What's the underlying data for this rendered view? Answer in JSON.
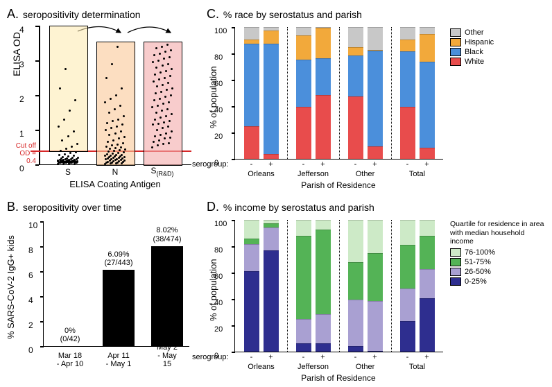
{
  "panelA": {
    "title_letter": "A.",
    "title_text": "seropositivity determination",
    "ylabel": "ELISA OD",
    "xlabel": "ELISA Coating Antigen",
    "ylim": [
      0,
      4
    ],
    "yticks": [
      0,
      1,
      2,
      3,
      4
    ],
    "cutoff": 0.4,
    "cutoff_label_line1": "Cut off",
    "cutoff_label_line2": "OD = 0.4",
    "categories": [
      "S",
      "N",
      "S(R&D)"
    ],
    "category_sub": [
      "",
      "",
      "(R&D)"
    ],
    "box_colors": [
      "#fdebb4",
      "#fac898",
      "#f4aaaa"
    ],
    "box_tops": [
      4,
      3.55,
      3.55
    ],
    "box_bottoms": [
      0.4,
      0,
      0
    ],
    "dots": {
      "S": [
        0.02,
        0.03,
        0.04,
        0.04,
        0.05,
        0.05,
        0.05,
        0.06,
        0.06,
        0.06,
        0.06,
        0.07,
        0.07,
        0.07,
        0.08,
        0.08,
        0.08,
        0.09,
        0.09,
        0.09,
        0.1,
        0.1,
        0.1,
        0.11,
        0.11,
        0.12,
        0.12,
        0.13,
        0.13,
        0.14,
        0.14,
        0.15,
        0.15,
        0.16,
        0.17,
        0.18,
        0.19,
        0.2,
        0.22,
        0.24,
        0.26,
        0.28,
        0.3,
        0.33,
        0.36,
        0.4,
        0.45,
        0.52,
        0.6,
        0.7,
        0.82,
        0.95,
        1.1,
        1.3,
        1.55,
        1.85,
        2.2,
        2.75,
        0.05,
        0.06,
        0.07,
        0.08,
        0.09,
        0.1,
        0.11,
        0.12,
        0.05,
        0.06,
        0.07,
        0.08
      ],
      "N": [
        0.02,
        0.03,
        0.03,
        0.04,
        0.05,
        0.05,
        0.06,
        0.07,
        0.08,
        0.09,
        0.1,
        0.11,
        0.12,
        0.13,
        0.14,
        0.15,
        0.15,
        0.16,
        0.17,
        0.18,
        0.19,
        0.2,
        0.21,
        0.22,
        0.23,
        0.24,
        0.25,
        0.26,
        0.27,
        0.28,
        0.3,
        0.32,
        0.34,
        0.36,
        0.38,
        0.4,
        0.42,
        0.44,
        0.46,
        0.48,
        0.5,
        0.52,
        0.55,
        0.58,
        0.62,
        0.66,
        0.7,
        0.75,
        0.8,
        0.85,
        0.9,
        0.95,
        1.0,
        1.05,
        1.1,
        1.15,
        1.2,
        1.25,
        1.3,
        1.4,
        1.5,
        1.6,
        1.7,
        1.8,
        1.9,
        2.0,
        2.2,
        2.5,
        2.9,
        3.4
      ],
      "SRD": [
        0.5,
        0.55,
        0.6,
        0.62,
        0.65,
        0.7,
        0.75,
        0.78,
        0.82,
        0.85,
        0.9,
        0.95,
        1.0,
        1.05,
        1.1,
        1.15,
        1.18,
        1.22,
        1.25,
        1.3,
        1.35,
        1.4,
        1.45,
        1.5,
        1.55,
        1.6,
        1.65,
        1.7,
        1.75,
        1.8,
        1.85,
        1.9,
        1.95,
        2.0,
        2.05,
        2.1,
        2.15,
        2.2,
        2.25,
        2.3,
        2.35,
        2.4,
        2.45,
        2.5,
        2.55,
        2.6,
        2.65,
        2.7,
        2.75,
        2.8,
        2.85,
        2.9,
        2.95,
        3.0,
        3.05,
        3.1,
        3.15,
        3.2,
        3.25,
        3.3,
        3.35,
        3.4,
        3.45
      ]
    }
  },
  "panelB": {
    "title_letter": "B.",
    "title_text": "seropositivity over time",
    "ylabel": "% SARS-CoV-2 IgG+ kids",
    "ylim": [
      0,
      10
    ],
    "yticks": [
      0,
      2,
      4,
      6,
      8,
      10
    ],
    "bar_color": "#000000",
    "categories_line1": [
      "Mar 18",
      "Apr 11",
      "May 2"
    ],
    "categories_line2": [
      "- Apr 10",
      "- May 1",
      "- May 15"
    ],
    "values": [
      0,
      6.09,
      8.02
    ],
    "value_labels_line1": [
      "0%",
      "6.09%",
      "8.02%"
    ],
    "value_labels_line2": [
      "(0/42)",
      "(27/443)",
      "(38/474)"
    ]
  },
  "panelC": {
    "title_letter": "C.",
    "title_text": "% race by serostatus and parish",
    "ylabel": "% of population",
    "xlabel": "Parish of Residence",
    "ylim": [
      0,
      100
    ],
    "yticks": [
      0,
      20,
      40,
      60,
      80,
      100
    ],
    "serogroup_label": "serogroup:",
    "groups": [
      "Orleans",
      "Jefferson",
      "Other",
      "Total"
    ],
    "sero": [
      "-",
      "+"
    ],
    "legend_order": [
      "Other",
      "Hispanic",
      "Black",
      "White"
    ],
    "colors": {
      "White": "#e84c4c",
      "Black": "#4b8fdb",
      "Hispanic": "#f2a93b",
      "Other": "#c8c8c8"
    },
    "data": {
      "Orleans": {
        "-": {
          "White": 25,
          "Black": 63,
          "Hispanic": 3,
          "Other": 9
        },
        "+": {
          "White": 3,
          "Black": 85,
          "Hispanic": 10,
          "Other": 2
        }
      },
      "Jefferson": {
        "-": {
          "White": 40,
          "Black": 36,
          "Hispanic": 18,
          "Other": 6
        },
        "+": {
          "White": 49,
          "Black": 28,
          "Hispanic": 23,
          "Other": 0
        }
      },
      "Other": {
        "-": {
          "White": 48,
          "Black": 31,
          "Hispanic": 6,
          "Other": 15
        },
        "+": {
          "White": 9,
          "Black": 74,
          "Hispanic": 0,
          "Other": 17
        }
      },
      "Total": {
        "-": {
          "White": 40,
          "Black": 42,
          "Hispanic": 9,
          "Other": 9
        },
        "+": {
          "White": 8,
          "Black": 66,
          "Hispanic": 21,
          "Other": 5
        }
      }
    }
  },
  "panelD": {
    "title_letter": "D.",
    "title_text": "% income by serostatus and parish",
    "ylabel": "% of population",
    "xlabel": "Parish of Residence",
    "ylim": [
      0,
      100
    ],
    "yticks": [
      0,
      20,
      40,
      60,
      80,
      100
    ],
    "serogroup_label": "serogroup:",
    "legend_title": "Quartile for residence in area with median household income",
    "groups": [
      "Orleans",
      "Jefferson",
      "Other",
      "Total"
    ],
    "sero": [
      "-",
      "+"
    ],
    "legend_order": [
      "76-100%",
      "51-75%",
      "26-50%",
      "0-25%"
    ],
    "colors": {
      "0-25%": "#2e2e8f",
      "26-50%": "#a9a0d2",
      "51-75%": "#54b356",
      "76-100%": "#cdeac7"
    },
    "data": {
      "Orleans": {
        "-": {
          "0-25%": 62,
          "26-50%": 20,
          "51-75%": 4,
          "76-100%": 14
        },
        "+": {
          "0-25%": 78,
          "26-50%": 17,
          "51-75%": 3,
          "76-100%": 2
        }
      },
      "Jefferson": {
        "-": {
          "0-25%": 6,
          "26-50%": 18,
          "51-75%": 64,
          "76-100%": 12
        },
        "+": {
          "0-25%": 6,
          "26-50%": 22,
          "51-75%": 65,
          "76-100%": 7
        }
      },
      "Other": {
        "-": {
          "0-25%": 4,
          "26-50%": 35,
          "51-75%": 29,
          "76-100%": 32
        },
        "+": {
          "0-25%": 0,
          "26-50%": 38,
          "51-75%": 37,
          "76-100%": 25
        }
      },
      "Total": {
        "-": {
          "0-25%": 23,
          "26-50%": 25,
          "51-75%": 33,
          "76-100%": 19
        },
        "+": {
          "0-25%": 41,
          "26-50%": 22,
          "51-75%": 25,
          "76-100%": 12
        }
      }
    }
  }
}
